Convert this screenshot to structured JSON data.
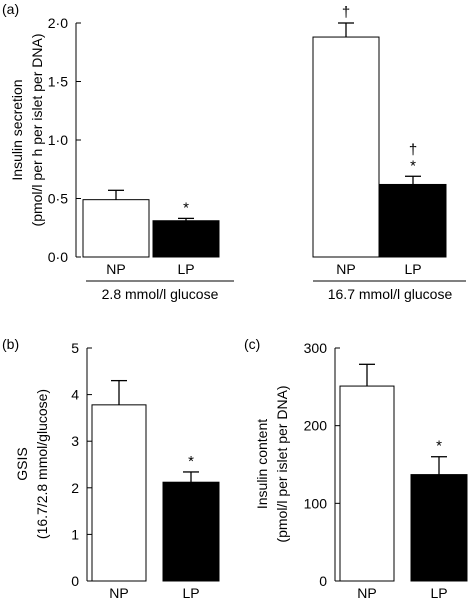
{
  "colors": {
    "np": "#ffffff",
    "lp": "#000000",
    "stroke": "#000000"
  },
  "chart_data": [
    {
      "panel": "(a)",
      "type": "bar",
      "ylabel_line1": "Insulin secretion",
      "ylabel_line2": "(pmol/l per h per islet per DNA)",
      "ylim": [
        0,
        2.0
      ],
      "yticks": [
        "0·0",
        "0·5",
        "1·0",
        "1·5",
        "2·0"
      ],
      "ytick_values": [
        0,
        0.5,
        1.0,
        1.5,
        2.0
      ],
      "groups": [
        {
          "label": "2.8 mmol/l glucose",
          "bars": [
            {
              "label": "NP",
              "value": 0.49,
              "error": 0.08,
              "marks": ""
            },
            {
              "label": "LP",
              "value": 0.31,
              "error": 0.02,
              "marks": "*"
            }
          ]
        },
        {
          "label": "16.7 mmol/l glucose",
          "bars": [
            {
              "label": "NP",
              "value": 1.88,
              "error": 0.12,
              "marks": "†"
            },
            {
              "label": "LP",
              "value": 0.62,
              "error": 0.07,
              "marks": "†*"
            }
          ]
        }
      ]
    },
    {
      "panel": "(b)",
      "type": "bar",
      "ylabel_line1": "GSIS",
      "ylabel_line2": "(16.7/2.8 mmol/glucose)",
      "ylim": [
        0,
        5
      ],
      "yticks": [
        "0",
        "1",
        "2",
        "3",
        "4",
        "5"
      ],
      "ytick_values": [
        0,
        1,
        2,
        3,
        4,
        5
      ],
      "categories": [
        "NP",
        "LP"
      ],
      "values": [
        3.78,
        2.12
      ],
      "errors": [
        0.52,
        0.22
      ],
      "marks": [
        "",
        "*"
      ]
    },
    {
      "panel": "(c)",
      "type": "bar",
      "ylabel_line1": "Insulin content",
      "ylabel_line2": "(pmol/l per islet per DNA)",
      "ylim": [
        0,
        300
      ],
      "yticks": [
        "0",
        "100",
        "200",
        "300"
      ],
      "ytick_values": [
        0,
        100,
        200,
        300
      ],
      "categories": [
        "NP",
        "LP"
      ],
      "values": [
        251,
        137
      ],
      "errors": [
        28,
        23
      ],
      "marks": [
        "",
        "*"
      ]
    }
  ]
}
